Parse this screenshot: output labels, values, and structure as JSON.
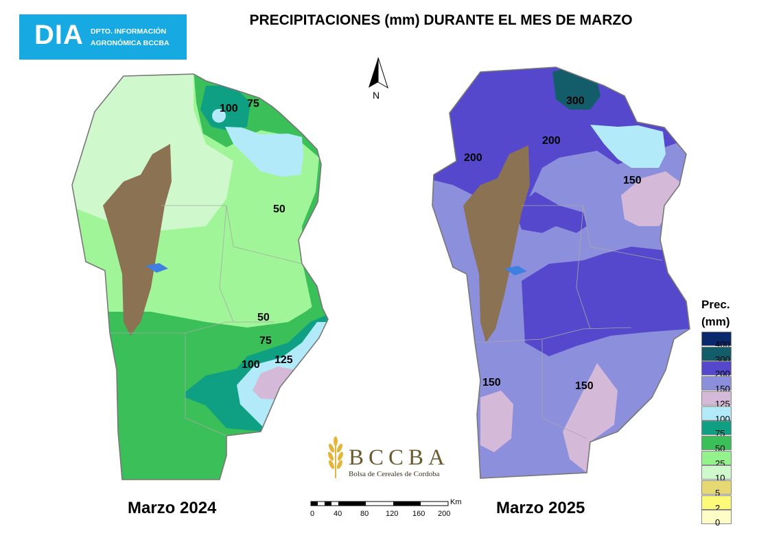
{
  "header": {
    "logo_main": "DIA",
    "logo_line1": "DPTO. INFORMACIÓN",
    "logo_line2": "AGRONÓMICA BCCBA",
    "title": "PRECIPITACIONES (mm) DURANTE EL MES DE MARZO"
  },
  "north_arrow": {
    "label": "N"
  },
  "maps": [
    {
      "label": "Marzo 2024",
      "isohyet_labels": [
        "75",
        "100",
        "50",
        "50",
        "75",
        "100",
        "125"
      ]
    },
    {
      "label": "Marzo 2025",
      "isohyet_labels": [
        "300",
        "200",
        "200",
        "150",
        "150",
        "150"
      ]
    }
  ],
  "legend": {
    "title_line1": "Prec.",
    "title_line2": "(mm)",
    "classes": [
      {
        "label": "400",
        "color": "#0b2a6e"
      },
      {
        "label": "300",
        "color": "#135d6b"
      },
      {
        "label": "200",
        "color": "#5548cc"
      },
      {
        "label": "150",
        "color": "#8c8fdb"
      },
      {
        "label": "125",
        "color": "#d4b9d8"
      },
      {
        "label": "100",
        "color": "#b2eafa"
      },
      {
        "label": "75",
        "color": "#0fa083"
      },
      {
        "label": "50",
        "color": "#3bbf58"
      },
      {
        "label": "25",
        "color": "#94f28c"
      },
      {
        "label": "10",
        "color": "#cff8cc"
      },
      {
        "label": "5",
        "color": "#e6d873"
      },
      {
        "label": "2",
        "color": "#fdfa7a"
      },
      {
        "label": "0",
        "color": "#fefcc6"
      }
    ]
  },
  "scale_bar": {
    "unit": "Km",
    "ticks": [
      "0",
      "40",
      "80",
      "120",
      "160",
      "200"
    ]
  },
  "bccba_logo": {
    "name": "BCCBA",
    "subtitle": "Bolsa de Cereales de Cordoba"
  },
  "colors": {
    "mountains": "#8b7252",
    "lakes": "#3e7fe0"
  }
}
